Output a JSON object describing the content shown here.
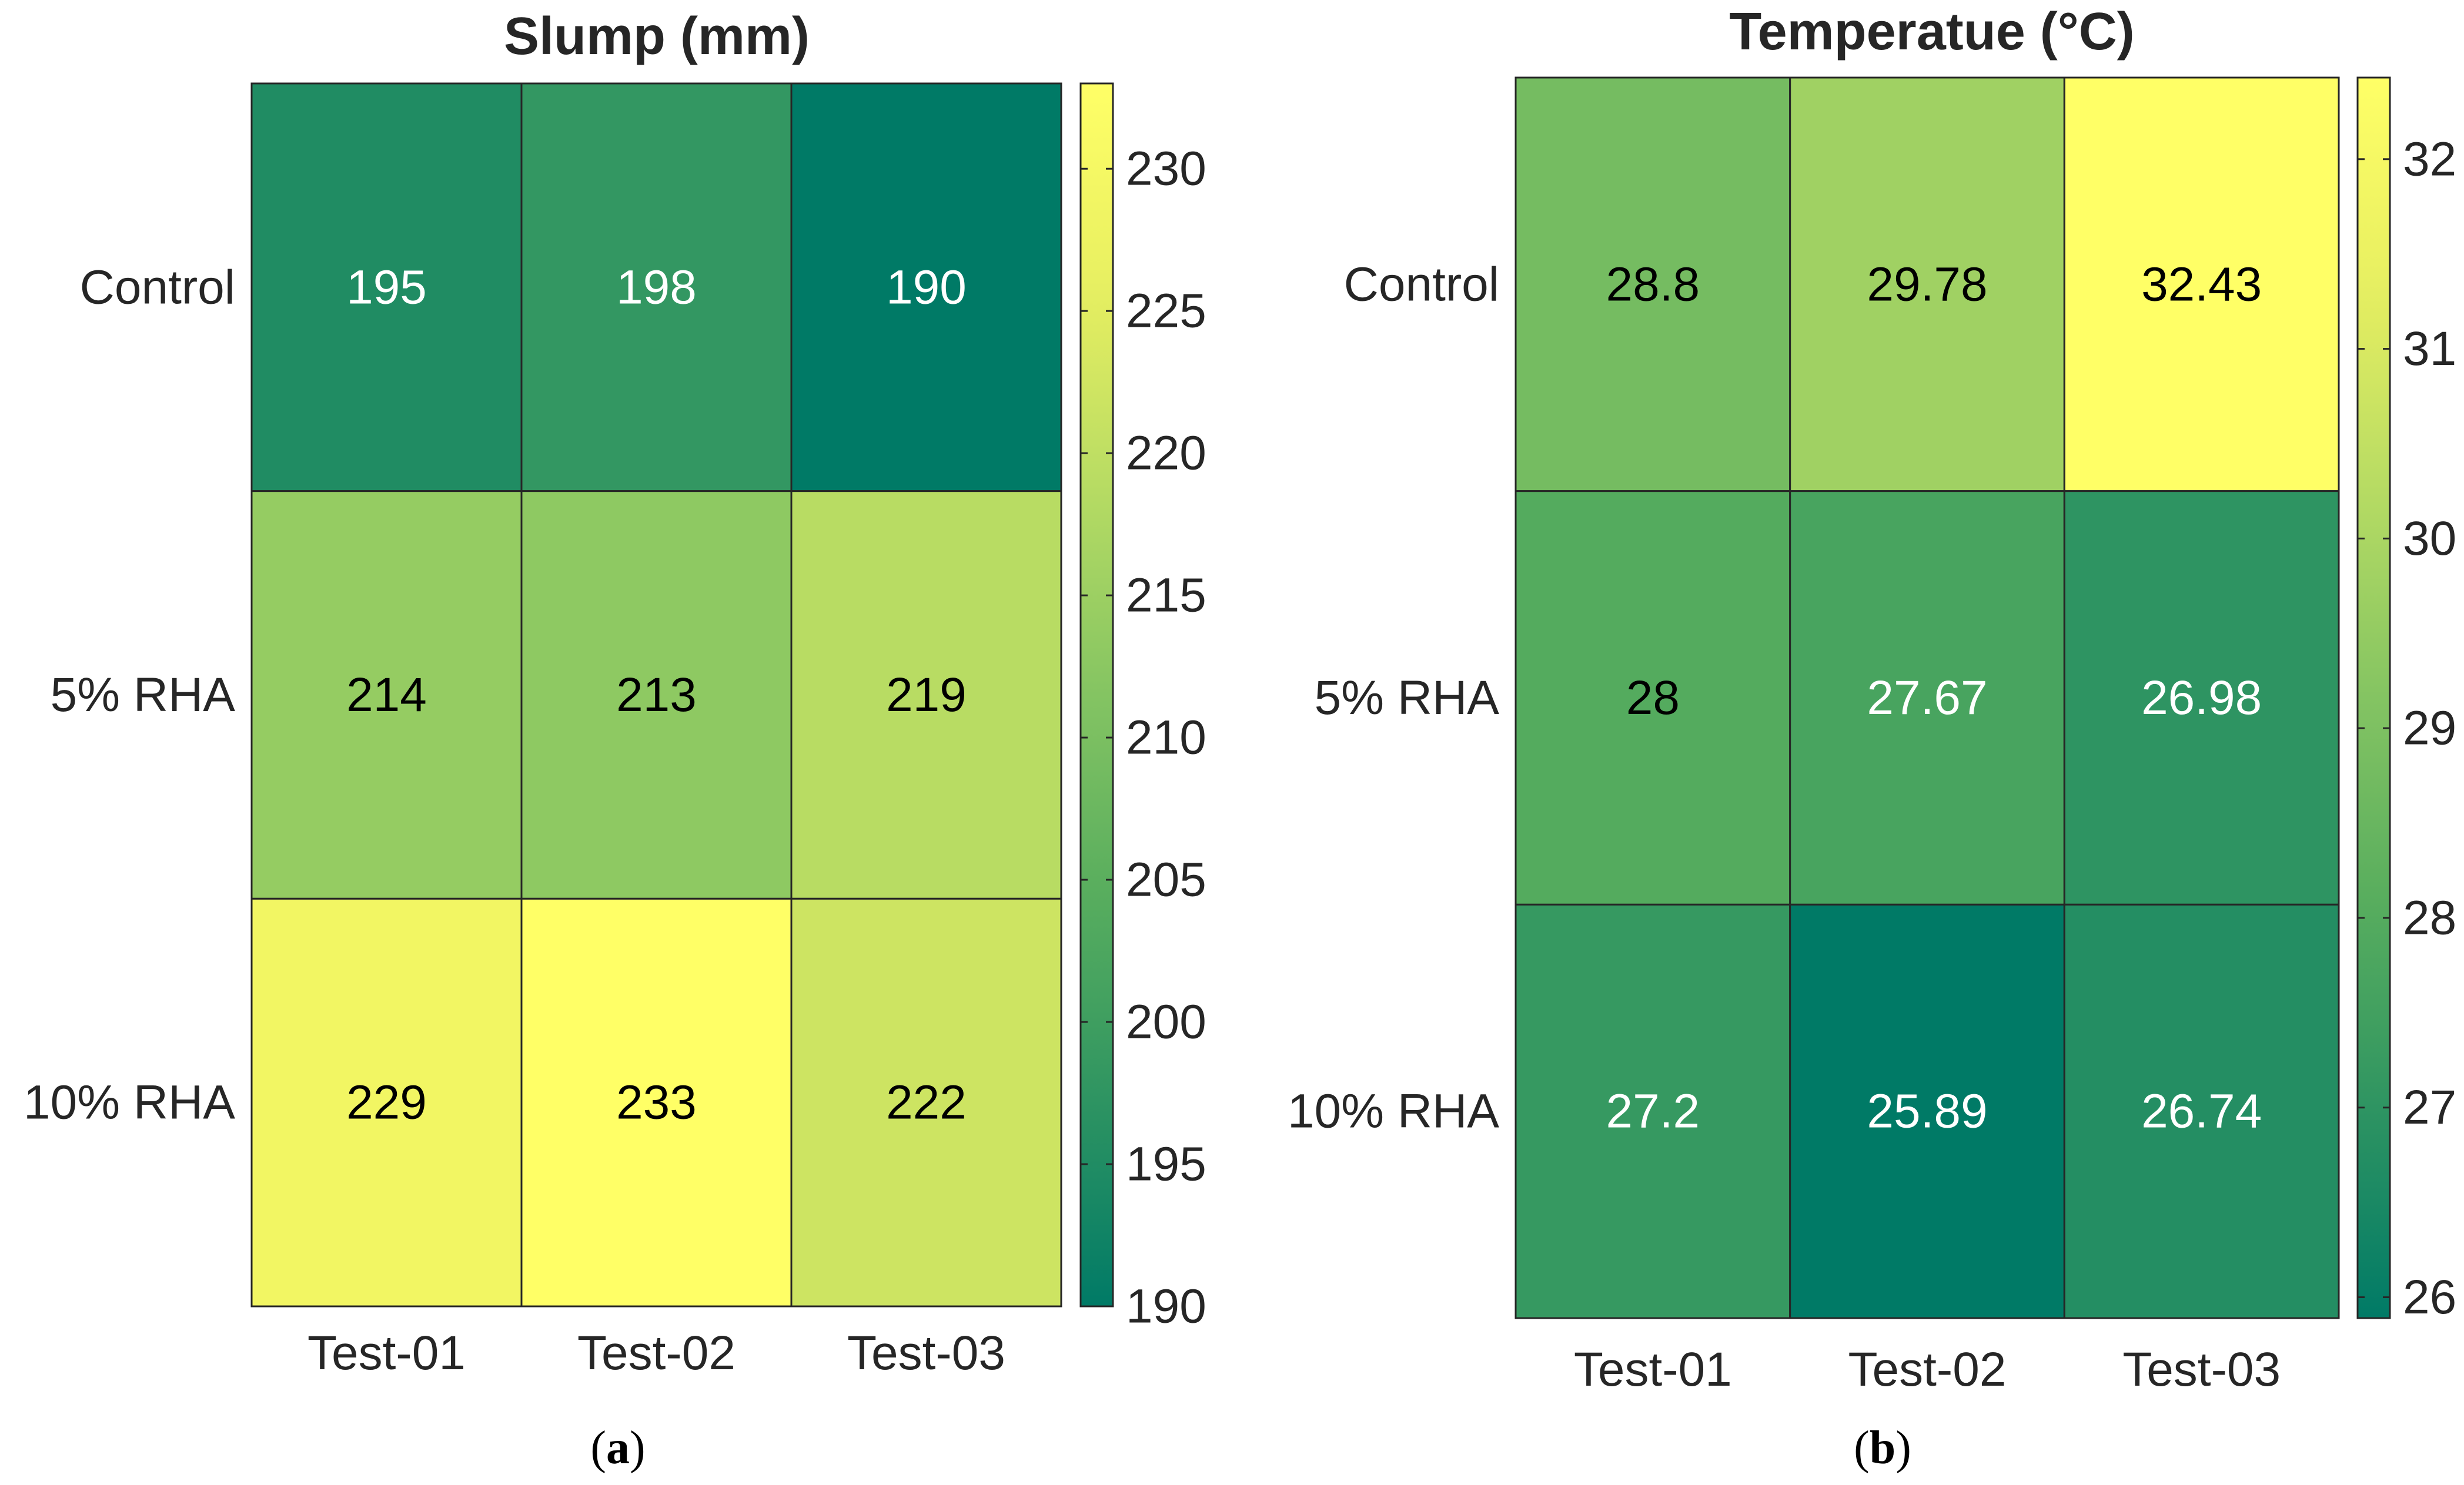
{
  "colormap": [
    "#007A66",
    "#2E9462",
    "#57AD5E",
    "#84C462",
    "#B6DB63",
    "#E8EF61",
    "#FFFF66"
  ],
  "text_colors": {
    "dark": "#000000",
    "light": "#FFFFFF"
  },
  "chart_data": [
    {
      "type": "heatmap",
      "title": "Slump (mm)",
      "panel_label": {
        "open": "(",
        "letter": "a",
        "close": ")"
      },
      "rows": [
        "Control",
        "5% RHA",
        "10% RHA"
      ],
      "columns": [
        "Test-01",
        "Test-02",
        "Test-03"
      ],
      "values": [
        [
          195,
          198,
          190
        ],
        [
          214,
          213,
          219
        ],
        [
          229,
          233,
          222
        ]
      ],
      "value_labels": [
        [
          "195",
          "198",
          "190"
        ],
        [
          "214",
          "213",
          "219"
        ],
        [
          "229",
          "233",
          "222"
        ]
      ],
      "colorbar": {
        "min": 190,
        "max": 233,
        "ticks": [
          190,
          195,
          200,
          205,
          210,
          215,
          220,
          225,
          230
        ]
      }
    },
    {
      "type": "heatmap",
      "title": "Temperatue (°C)",
      "panel_label": {
        "open": "(",
        "letter": "b",
        "close": ")"
      },
      "rows": [
        "Control",
        "5% RHA",
        "10% RHA"
      ],
      "columns": [
        "Test-01",
        "Test-02",
        "Test-03"
      ],
      "values": [
        [
          28.8,
          29.78,
          32.43
        ],
        [
          28,
          27.67,
          26.98
        ],
        [
          27.2,
          25.89,
          26.74
        ]
      ],
      "value_labels": [
        [
          "28.8",
          "29.78",
          "32.43"
        ],
        [
          "28",
          "27.67",
          "26.98"
        ],
        [
          "27.2",
          "25.89",
          "26.74"
        ]
      ],
      "colorbar": {
        "min": 25.89,
        "max": 32.43,
        "ticks": [
          26,
          27,
          28,
          29,
          30,
          31,
          32
        ]
      }
    }
  ]
}
